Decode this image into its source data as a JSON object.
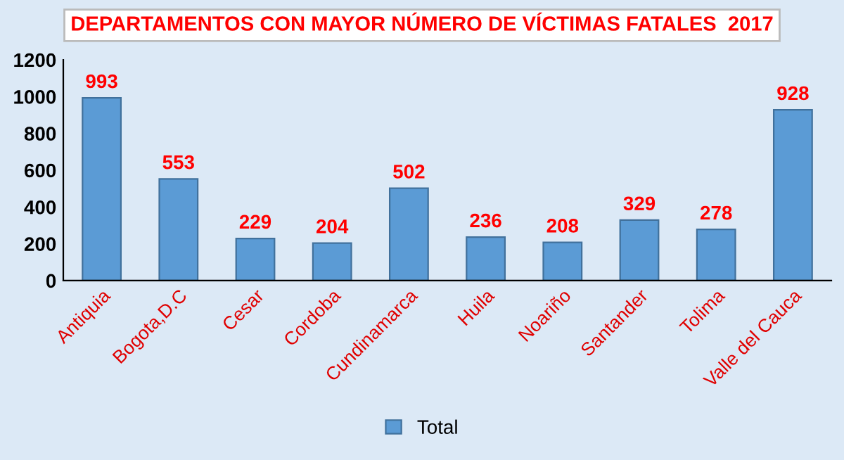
{
  "chart_data": {
    "type": "bar",
    "title": "DEPARTAMENTOS CON MAYOR NÚMERO DE VÍCTIMAS FATALES  2017",
    "categories": [
      "Antiquia",
      "Bogota,D.C",
      "Cesar",
      "Cordoba",
      "Cundinamarca",
      "Huila",
      "Noariño",
      "Santander",
      "Tolima",
      "Valle del Cauca"
    ],
    "series": [
      {
        "name": "Total",
        "color": "#5b9bd5",
        "values": [
          993,
          553,
          229,
          204,
          502,
          236,
          208,
          329,
          278,
          928
        ]
      }
    ],
    "data_labels": true,
    "ylim": [
      0,
      1200
    ],
    "yticks": [
      0,
      200,
      400,
      600,
      800,
      1000,
      1200
    ],
    "grid": false,
    "legend": "bottom"
  }
}
